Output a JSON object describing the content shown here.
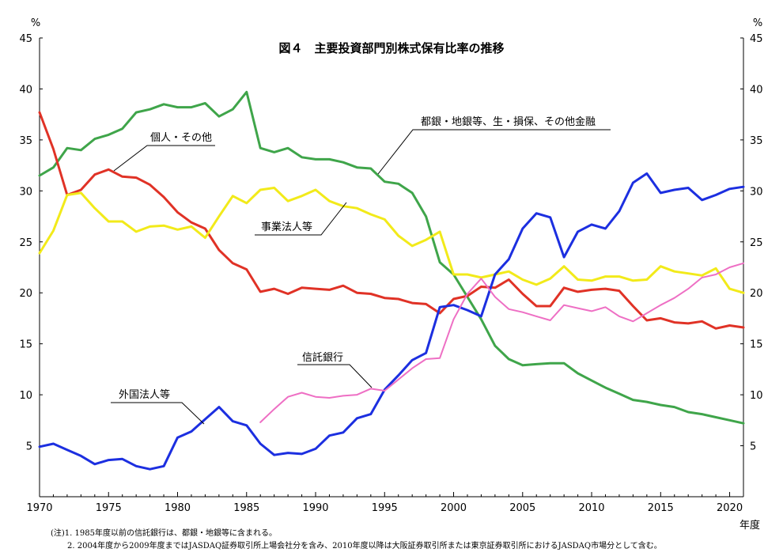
{
  "chart_data": {
    "type": "line",
    "title": "図４　主要投資部門別株式保有比率の推移",
    "y_unit_left": "%",
    "y_unit_right": "%",
    "xlabel": "年度",
    "xlim": [
      1970,
      2021
    ],
    "ylim": [
      0,
      45
    ],
    "x_ticks": [
      1970,
      1975,
      1980,
      1985,
      1990,
      1995,
      2000,
      2005,
      2010,
      2015,
      2020
    ],
    "y_ticks_left": [
      5,
      10,
      15,
      20,
      25,
      30,
      35,
      40,
      45
    ],
    "y_ticks_right": [
      5,
      10,
      15,
      20,
      25,
      30,
      35,
      40,
      45
    ],
    "grid": false,
    "legend": "inline annotations",
    "series": [
      {
        "name": "都銀・地銀等、生・損保、その他金融",
        "color": "#3fa54a",
        "x": [
          1970,
          1971,
          1972,
          1973,
          1974,
          1975,
          1976,
          1977,
          1978,
          1979,
          1980,
          1981,
          1982,
          1983,
          1984,
          1985,
          1986,
          1987,
          1988,
          1989,
          1990,
          1991,
          1992,
          1993,
          1994,
          1995,
          1996,
          1997,
          1998,
          1999,
          2000,
          2001,
          2002,
          2003,
          2004,
          2005,
          2006,
          2007,
          2008,
          2009,
          2010,
          2011,
          2012,
          2013,
          2014,
          2015,
          2016,
          2017,
          2018,
          2019,
          2020,
          2021
        ],
        "values": [
          31.5,
          32.3,
          34.2,
          34.0,
          35.1,
          35.5,
          36.1,
          37.7,
          38.0,
          38.5,
          38.2,
          38.2,
          38.6,
          37.3,
          38.0,
          39.7,
          34.2,
          33.8,
          34.2,
          33.3,
          33.1,
          33.1,
          32.8,
          32.3,
          32.2,
          30.9,
          30.7,
          29.8,
          27.5,
          23.0,
          21.8,
          19.6,
          17.4,
          14.8,
          13.5,
          12.9,
          13.0,
          13.1,
          13.1,
          12.1,
          11.4,
          10.7,
          10.1,
          9.5,
          9.3,
          9.0,
          8.8,
          8.3,
          8.1,
          7.8,
          7.5,
          7.2
        ]
      },
      {
        "name": "個人・その他",
        "color": "#e03226",
        "x": [
          1970,
          1971,
          1972,
          1973,
          1974,
          1975,
          1976,
          1977,
          1978,
          1979,
          1980,
          1981,
          1982,
          1983,
          1984,
          1985,
          1986,
          1987,
          1988,
          1989,
          1990,
          1991,
          1992,
          1993,
          1994,
          1995,
          1996,
          1997,
          1998,
          1999,
          2000,
          2001,
          2002,
          2003,
          2004,
          2005,
          2006,
          2007,
          2008,
          2009,
          2010,
          2011,
          2012,
          2013,
          2014,
          2015,
          2016,
          2017,
          2018,
          2019,
          2020,
          2021
        ],
        "values": [
          37.7,
          34.1,
          29.6,
          30.1,
          31.6,
          32.1,
          31.4,
          31.3,
          30.6,
          29.4,
          27.9,
          26.9,
          26.3,
          24.2,
          22.9,
          22.3,
          20.1,
          20.4,
          19.9,
          20.5,
          20.4,
          20.3,
          20.7,
          20.0,
          19.9,
          19.5,
          19.4,
          19.0,
          18.9,
          18.0,
          19.4,
          19.7,
          20.6,
          20.5,
          21.3,
          19.9,
          18.7,
          18.7,
          20.5,
          20.1,
          20.3,
          20.4,
          20.2,
          18.7,
          17.3,
          17.5,
          17.1,
          17.0,
          17.2,
          16.5,
          16.8,
          16.6
        ]
      },
      {
        "name": "事業法人等",
        "color": "#f2ea1a",
        "x": [
          1970,
          1971,
          1972,
          1973,
          1974,
          1975,
          1976,
          1977,
          1978,
          1979,
          1980,
          1981,
          1982,
          1983,
          1984,
          1985,
          1986,
          1987,
          1988,
          1989,
          1990,
          1991,
          1992,
          1993,
          1994,
          1995,
          1996,
          1997,
          1998,
          1999,
          2000,
          2001,
          2002,
          2003,
          2004,
          2005,
          2006,
          2007,
          2008,
          2009,
          2010,
          2011,
          2012,
          2013,
          2014,
          2015,
          2016,
          2017,
          2018,
          2019,
          2020,
          2021
        ],
        "values": [
          23.9,
          26.1,
          29.6,
          29.8,
          28.3,
          27.0,
          27.0,
          26.0,
          26.5,
          26.6,
          26.2,
          26.5,
          25.4,
          27.5,
          29.5,
          28.8,
          30.1,
          30.3,
          29.0,
          29.5,
          30.1,
          29.0,
          28.5,
          28.3,
          27.7,
          27.2,
          25.6,
          24.6,
          25.2,
          26.0,
          21.8,
          21.8,
          21.5,
          21.8,
          22.1,
          21.3,
          20.8,
          21.4,
          22.6,
          21.3,
          21.2,
          21.6,
          21.6,
          21.2,
          21.3,
          22.6,
          22.1,
          21.9,
          21.7,
          22.4,
          20.4,
          20.0
        ]
      },
      {
        "name": "外国法人等",
        "color": "#1c2fe0",
        "x": [
          1970,
          1971,
          1972,
          1973,
          1974,
          1975,
          1976,
          1977,
          1978,
          1979,
          1980,
          1981,
          1982,
          1983,
          1984,
          1985,
          1986,
          1987,
          1988,
          1989,
          1990,
          1991,
          1992,
          1993,
          1994,
          1995,
          1996,
          1997,
          1998,
          1999,
          2000,
          2001,
          2002,
          2003,
          2004,
          2005,
          2006,
          2007,
          2008,
          2009,
          2010,
          2011,
          2012,
          2013,
          2014,
          2015,
          2016,
          2017,
          2018,
          2019,
          2020,
          2021
        ],
        "values": [
          4.9,
          5.2,
          4.6,
          4.0,
          3.2,
          3.6,
          3.7,
          3.0,
          2.7,
          3.0,
          5.8,
          6.4,
          7.6,
          8.8,
          7.4,
          7.0,
          5.2,
          4.1,
          4.3,
          4.2,
          4.7,
          6.0,
          6.3,
          7.7,
          8.1,
          10.5,
          11.9,
          13.4,
          14.1,
          18.6,
          18.8,
          18.3,
          17.7,
          21.8,
          23.3,
          26.3,
          27.8,
          27.4,
          23.5,
          26.0,
          26.7,
          26.3,
          28.0,
          30.8,
          31.7,
          29.8,
          30.1,
          30.3,
          29.1,
          29.6,
          30.2,
          30.4
        ]
      },
      {
        "name": "信託銀行",
        "color": "#ee6fc4",
        "x": [
          1986,
          1987,
          1988,
          1989,
          1990,
          1991,
          1992,
          1993,
          1994,
          1995,
          1996,
          1997,
          1998,
          1999,
          2000,
          2001,
          2002,
          2003,
          2004,
          2005,
          2006,
          2007,
          2008,
          2009,
          2010,
          2011,
          2012,
          2013,
          2014,
          2015,
          2016,
          2017,
          2018,
          2019,
          2020,
          2021
        ],
        "values": [
          7.3,
          8.6,
          9.8,
          10.2,
          9.8,
          9.7,
          9.9,
          10.0,
          10.6,
          10.4,
          11.5,
          12.6,
          13.5,
          13.6,
          17.4,
          19.9,
          21.4,
          19.6,
          18.4,
          18.1,
          17.7,
          17.3,
          18.8,
          18.5,
          18.2,
          18.6,
          17.7,
          17.2,
          18.0,
          18.8,
          19.5,
          20.4,
          21.5,
          21.8,
          22.5,
          22.9
        ]
      }
    ],
    "annotations": [
      {
        "series": 0,
        "label": "都銀・地銀等、生・損保、その他金融"
      },
      {
        "series": 1,
        "label": "個人・その他"
      },
      {
        "series": 2,
        "label": "事業法人等"
      },
      {
        "series": 3,
        "label": "外国法人等"
      },
      {
        "series": 4,
        "label": "信託銀行"
      }
    ]
  },
  "notes": [
    "(注)1. 1985年度以前の信託銀行は、都銀・地銀等に含まれる。",
    "2. 2004年度から2009年度まではJASDAQ証券取引所上場会社分を含み、2010年度以降は大阪証券取引所または東京証券取引所におけるJASDAQ市場分として含む。"
  ]
}
